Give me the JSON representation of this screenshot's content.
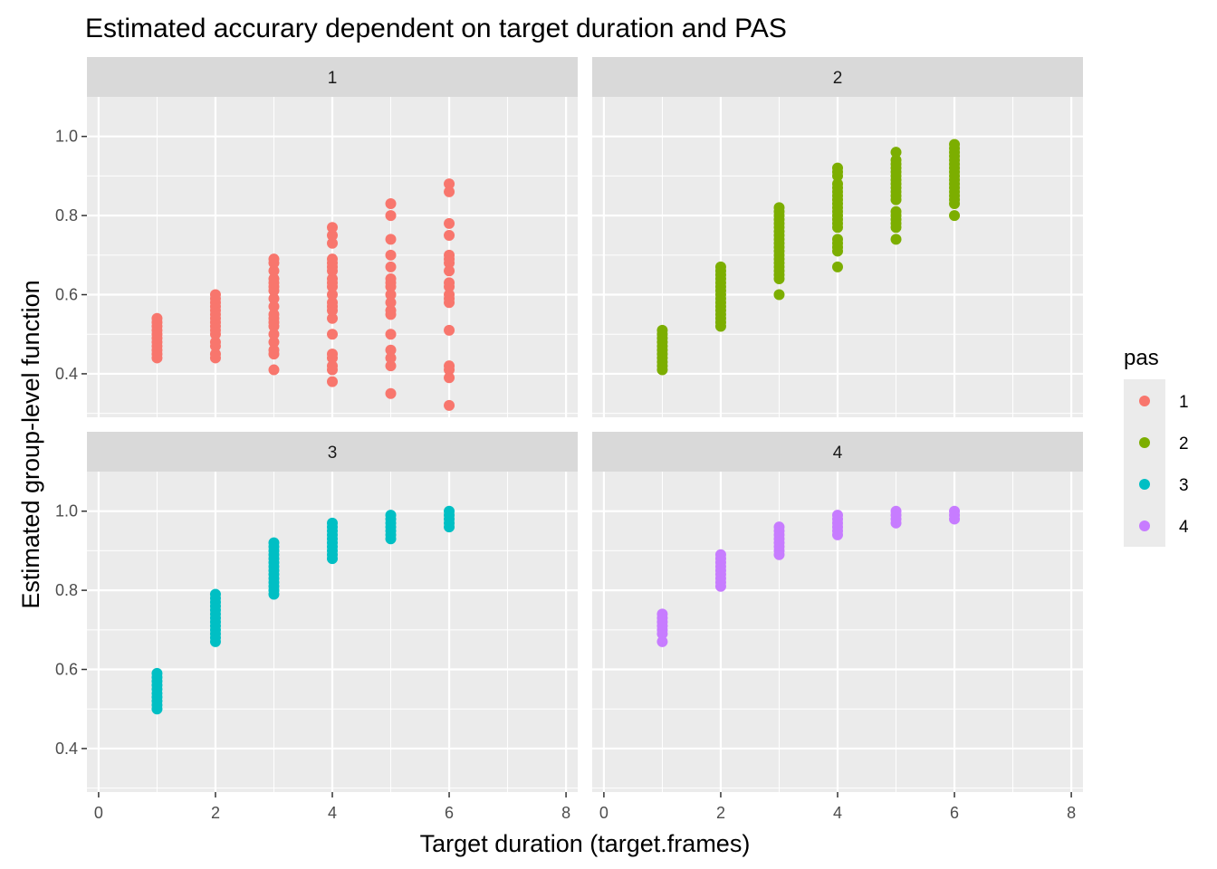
{
  "chart_data": {
    "type": "scatter",
    "title": "Estimated accurary dependent on target duration and PAS",
    "xlabel": "Target duration (target.frames)",
    "ylabel": "Estimated group-level function",
    "xlim": [
      -0.2,
      8.2
    ],
    "ylim": [
      0.29,
      1.1
    ],
    "x_ticks": [
      0,
      2,
      4,
      6,
      8
    ],
    "y_ticks": [
      0.4,
      0.6,
      0.8,
      1.0
    ],
    "y_tick_labels": [
      "0.4",
      "0.6",
      "0.8",
      "1.0"
    ],
    "grid": true,
    "legend": {
      "title": "pas",
      "placement": "right"
    },
    "colors": {
      "1": "#F8766D",
      "2": "#7CAE00",
      "3": "#00BFC4",
      "4": "#C77CFF"
    },
    "panel_background": "#EBEBEB",
    "strip_background": "#D9D9D9",
    "series": [
      {
        "name": "1",
        "color": "#F8766D",
        "points": [
          {
            "x": 1,
            "y": [
              0.44,
              0.45,
              0.46,
              0.47,
              0.48,
              0.49,
              0.5,
              0.51,
              0.52,
              0.53,
              0.54
            ]
          },
          {
            "x": 2,
            "y": [
              0.44,
              0.45,
              0.47,
              0.48,
              0.5,
              0.51,
              0.52,
              0.53,
              0.54,
              0.55,
              0.56,
              0.57,
              0.58,
              0.59,
              0.6
            ]
          },
          {
            "x": 3,
            "y": [
              0.41,
              0.45,
              0.46,
              0.48,
              0.5,
              0.52,
              0.53,
              0.54,
              0.55,
              0.57,
              0.59,
              0.61,
              0.62,
              0.63,
              0.64,
              0.66,
              0.68,
              0.69
            ]
          },
          {
            "x": 4,
            "y": [
              0.38,
              0.41,
              0.42,
              0.44,
              0.45,
              0.5,
              0.54,
              0.56,
              0.57,
              0.58,
              0.6,
              0.62,
              0.63,
              0.64,
              0.66,
              0.67,
              0.68,
              0.69,
              0.73,
              0.75,
              0.77
            ]
          },
          {
            "x": 5,
            "y": [
              0.35,
              0.42,
              0.44,
              0.46,
              0.5,
              0.55,
              0.56,
              0.58,
              0.6,
              0.62,
              0.63,
              0.64,
              0.67,
              0.7,
              0.74,
              0.8,
              0.83
            ]
          },
          {
            "x": 6,
            "y": [
              0.32,
              0.39,
              0.41,
              0.42,
              0.51,
              0.58,
              0.59,
              0.6,
              0.62,
              0.63,
              0.66,
              0.68,
              0.69,
              0.7,
              0.75,
              0.78,
              0.86,
              0.88
            ]
          }
        ]
      },
      {
        "name": "2",
        "color": "#7CAE00",
        "points": [
          {
            "x": 1,
            "y": [
              0.41,
              0.42,
              0.43,
              0.44,
              0.45,
              0.46,
              0.47,
              0.48,
              0.49,
              0.5,
              0.51
            ]
          },
          {
            "x": 2,
            "y": [
              0.52,
              0.53,
              0.54,
              0.55,
              0.56,
              0.57,
              0.58,
              0.59,
              0.6,
              0.61,
              0.62,
              0.63,
              0.64,
              0.65,
              0.66,
              0.67
            ]
          },
          {
            "x": 3,
            "y": [
              0.6,
              0.64,
              0.65,
              0.66,
              0.67,
              0.68,
              0.69,
              0.7,
              0.71,
              0.72,
              0.73,
              0.74,
              0.75,
              0.76,
              0.77,
              0.78,
              0.79,
              0.8,
              0.81,
              0.82
            ]
          },
          {
            "x": 4,
            "y": [
              0.67,
              0.71,
              0.72,
              0.73,
              0.74,
              0.77,
              0.78,
              0.79,
              0.8,
              0.81,
              0.82,
              0.83,
              0.84,
              0.85,
              0.86,
              0.87,
              0.88,
              0.9,
              0.91,
              0.92
            ]
          },
          {
            "x": 5,
            "y": [
              0.74,
              0.77,
              0.78,
              0.79,
              0.8,
              0.81,
              0.84,
              0.85,
              0.86,
              0.87,
              0.88,
              0.89,
              0.9,
              0.91,
              0.92,
              0.93,
              0.94,
              0.96
            ]
          },
          {
            "x": 6,
            "y": [
              0.8,
              0.83,
              0.84,
              0.85,
              0.86,
              0.87,
              0.88,
              0.89,
              0.9,
              0.91,
              0.92,
              0.93,
              0.94,
              0.95,
              0.96,
              0.97,
              0.98
            ]
          }
        ]
      },
      {
        "name": "3",
        "color": "#00BFC4",
        "points": [
          {
            "x": 1,
            "y": [
              0.5,
              0.51,
              0.52,
              0.53,
              0.54,
              0.55,
              0.56,
              0.57,
              0.58,
              0.59
            ]
          },
          {
            "x": 2,
            "y": [
              0.67,
              0.68,
              0.69,
              0.7,
              0.71,
              0.72,
              0.73,
              0.74,
              0.75,
              0.76,
              0.77,
              0.78,
              0.79
            ]
          },
          {
            "x": 3,
            "y": [
              0.79,
              0.8,
              0.81,
              0.82,
              0.83,
              0.84,
              0.85,
              0.86,
              0.87,
              0.88,
              0.89,
              0.9,
              0.91,
              0.92
            ]
          },
          {
            "x": 4,
            "y": [
              0.88,
              0.89,
              0.9,
              0.91,
              0.92,
              0.93,
              0.94,
              0.95,
              0.96,
              0.97
            ]
          },
          {
            "x": 5,
            "y": [
              0.93,
              0.94,
              0.95,
              0.96,
              0.97,
              0.98,
              0.99
            ]
          },
          {
            "x": 6,
            "y": [
              0.96,
              0.97,
              0.98,
              0.99,
              1.0
            ]
          }
        ]
      },
      {
        "name": "4",
        "color": "#C77CFF",
        "points": [
          {
            "x": 1,
            "y": [
              0.67,
              0.69,
              0.7,
              0.71,
              0.72,
              0.73,
              0.74
            ]
          },
          {
            "x": 2,
            "y": [
              0.81,
              0.82,
              0.83,
              0.84,
              0.85,
              0.86,
              0.87,
              0.88,
              0.89
            ]
          },
          {
            "x": 3,
            "y": [
              0.89,
              0.9,
              0.91,
              0.92,
              0.93,
              0.94,
              0.95,
              0.96
            ]
          },
          {
            "x": 4,
            "y": [
              0.94,
              0.95,
              0.96,
              0.97,
              0.98,
              0.99
            ]
          },
          {
            "x": 5,
            "y": [
              0.97,
              0.98,
              0.99,
              1.0
            ]
          },
          {
            "x": 6,
            "y": [
              0.98,
              0.99,
              1.0
            ]
          }
        ]
      }
    ]
  }
}
